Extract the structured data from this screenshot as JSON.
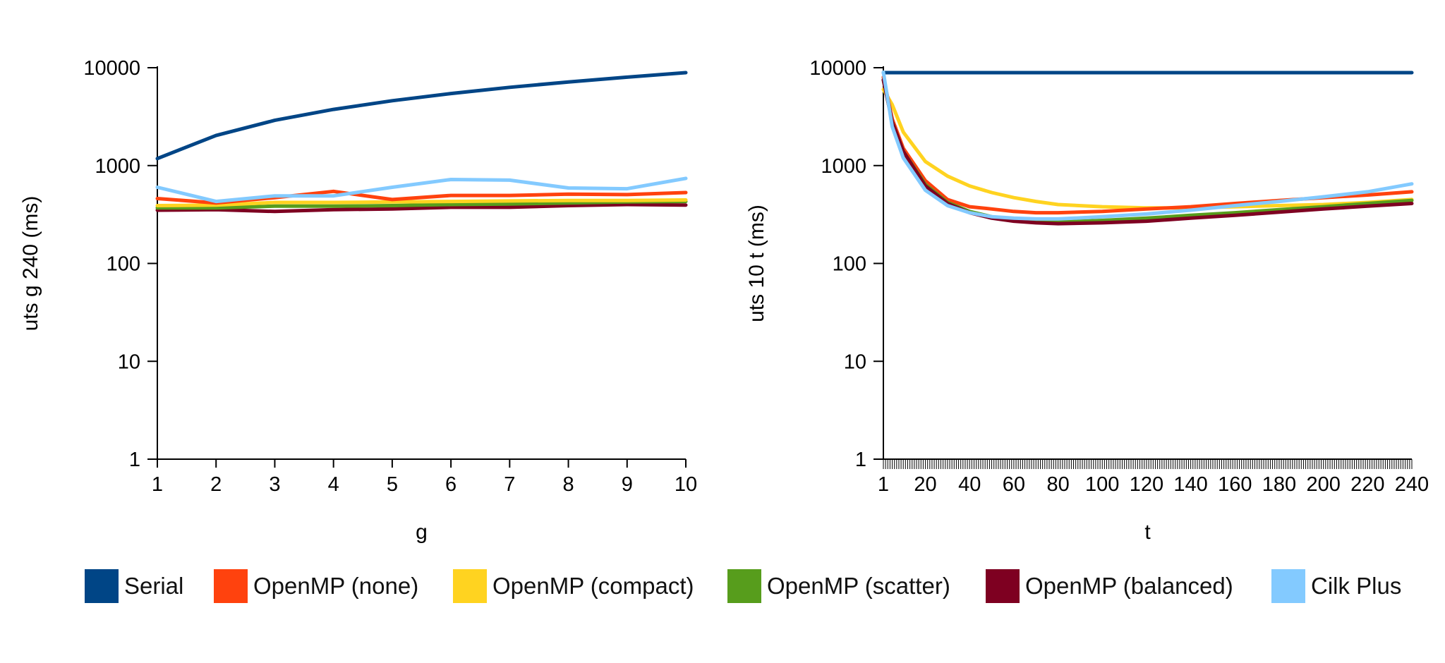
{
  "colors": {
    "Serial": "#004586",
    "OpenMP (none)": "#ff420e",
    "OpenMP (compact)": "#ffd320",
    "OpenMP (scatter)": "#579d1c",
    "OpenMP (balanced)": "#7e0021",
    "Cilk Plus": "#83caff"
  },
  "legend": [
    {
      "label": "Serial",
      "color": "#004586"
    },
    {
      "label": "OpenMP (none)",
      "color": "#ff420e"
    },
    {
      "label": "OpenMP (compact)",
      "color": "#ffd320"
    },
    {
      "label": "OpenMP (scatter)",
      "color": "#579d1c"
    },
    {
      "label": "OpenMP (balanced)",
      "color": "#7e0021"
    },
    {
      "label": "Cilk Plus",
      "color": "#83caff"
    }
  ],
  "chart_data": [
    {
      "type": "line",
      "title": "",
      "xlabel": "g",
      "ylabel": "uts g 240 (ms)",
      "yscale": "log",
      "ylim": [
        1,
        10000
      ],
      "yticks": [
        "10000",
        "1000",
        "100",
        "10",
        "1"
      ],
      "x": [
        1,
        2,
        3,
        4,
        5,
        6,
        7,
        8,
        9,
        10
      ],
      "xticks": [
        "1",
        "2",
        "3",
        "4",
        "5",
        "6",
        "7",
        "8",
        "9",
        "10"
      ],
      "grid": false,
      "legend_position": "bottom",
      "series": [
        {
          "name": "Serial",
          "values": [
            1180,
            2030,
            2900,
            3750,
            4600,
            5450,
            6300,
            7150,
            8000,
            8900
          ]
        },
        {
          "name": "OpenMP (none)",
          "values": [
            460,
            415,
            470,
            545,
            450,
            495,
            495,
            510,
            505,
            530
          ]
        },
        {
          "name": "OpenMP (compact)",
          "values": [
            390,
            395,
            420,
            420,
            425,
            430,
            435,
            440,
            440,
            445
          ]
        },
        {
          "name": "OpenMP (scatter)",
          "values": [
            370,
            370,
            385,
            385,
            390,
            400,
            405,
            415,
            425,
            430
          ]
        },
        {
          "name": "OpenMP (balanced)",
          "values": [
            350,
            355,
            340,
            355,
            360,
            375,
            375,
            390,
            400,
            395
          ]
        },
        {
          "name": "Cilk Plus",
          "values": [
            600,
            430,
            490,
            490,
            600,
            720,
            710,
            590,
            580,
            740
          ]
        }
      ]
    },
    {
      "type": "line",
      "title": "",
      "xlabel": "t",
      "ylabel": "uts 10 t (ms)",
      "yscale": "log",
      "ylim": [
        1,
        10000
      ],
      "yticks": [
        "10000",
        "1000",
        "100",
        "10",
        "1"
      ],
      "xlim": [
        1,
        240
      ],
      "xticks": [
        "1",
        "20",
        "40",
        "60",
        "80",
        "100",
        "120",
        "140",
        "160",
        "180",
        "200",
        "220",
        "240"
      ],
      "grid": false,
      "legend_position": "bottom",
      "series": [
        {
          "name": "Serial",
          "x": [
            1,
            240
          ],
          "values": [
            8900,
            8900
          ]
        },
        {
          "name": "OpenMP (none)",
          "x": [
            1,
            5,
            10,
            20,
            30,
            40,
            50,
            60,
            70,
            80,
            100,
            120,
            140,
            160,
            180,
            200,
            220,
            240
          ],
          "values": [
            8000,
            3000,
            1500,
            700,
            450,
            380,
            360,
            340,
            330,
            330,
            340,
            360,
            380,
            410,
            440,
            470,
            500,
            540
          ]
        },
        {
          "name": "OpenMP (compact)",
          "x": [
            1,
            5,
            10,
            20,
            30,
            40,
            50,
            60,
            70,
            80,
            100,
            120,
            140,
            160,
            180,
            200,
            220,
            240
          ],
          "values": [
            6000,
            4200,
            2200,
            1100,
            780,
            620,
            530,
            470,
            430,
            400,
            380,
            370,
            370,
            380,
            390,
            400,
            420,
            450
          ]
        },
        {
          "name": "OpenMP (scatter)",
          "x": [
            1,
            5,
            10,
            20,
            30,
            40,
            50,
            60,
            70,
            80,
            100,
            120,
            140,
            160,
            180,
            200,
            220,
            240
          ],
          "values": [
            7500,
            2800,
            1400,
            640,
            420,
            340,
            300,
            280,
            270,
            265,
            275,
            290,
            310,
            330,
            355,
            380,
            410,
            440
          ]
        },
        {
          "name": "OpenMP (balanced)",
          "x": [
            1,
            5,
            10,
            20,
            30,
            40,
            50,
            60,
            70,
            80,
            100,
            120,
            140,
            160,
            180,
            200,
            220,
            240
          ],
          "values": [
            7500,
            2800,
            1400,
            620,
            410,
            330,
            290,
            270,
            260,
            255,
            260,
            270,
            290,
            310,
            335,
            360,
            385,
            410
          ]
        },
        {
          "name": "Cilk Plus",
          "x": [
            1,
            5,
            10,
            20,
            30,
            40,
            50,
            60,
            70,
            80,
            100,
            120,
            140,
            160,
            180,
            200,
            220,
            240
          ],
          "values": [
            9000,
            2500,
            1200,
            560,
            390,
            330,
            300,
            290,
            285,
            285,
            300,
            320,
            350,
            390,
            430,
            480,
            540,
            650
          ]
        }
      ]
    }
  ]
}
